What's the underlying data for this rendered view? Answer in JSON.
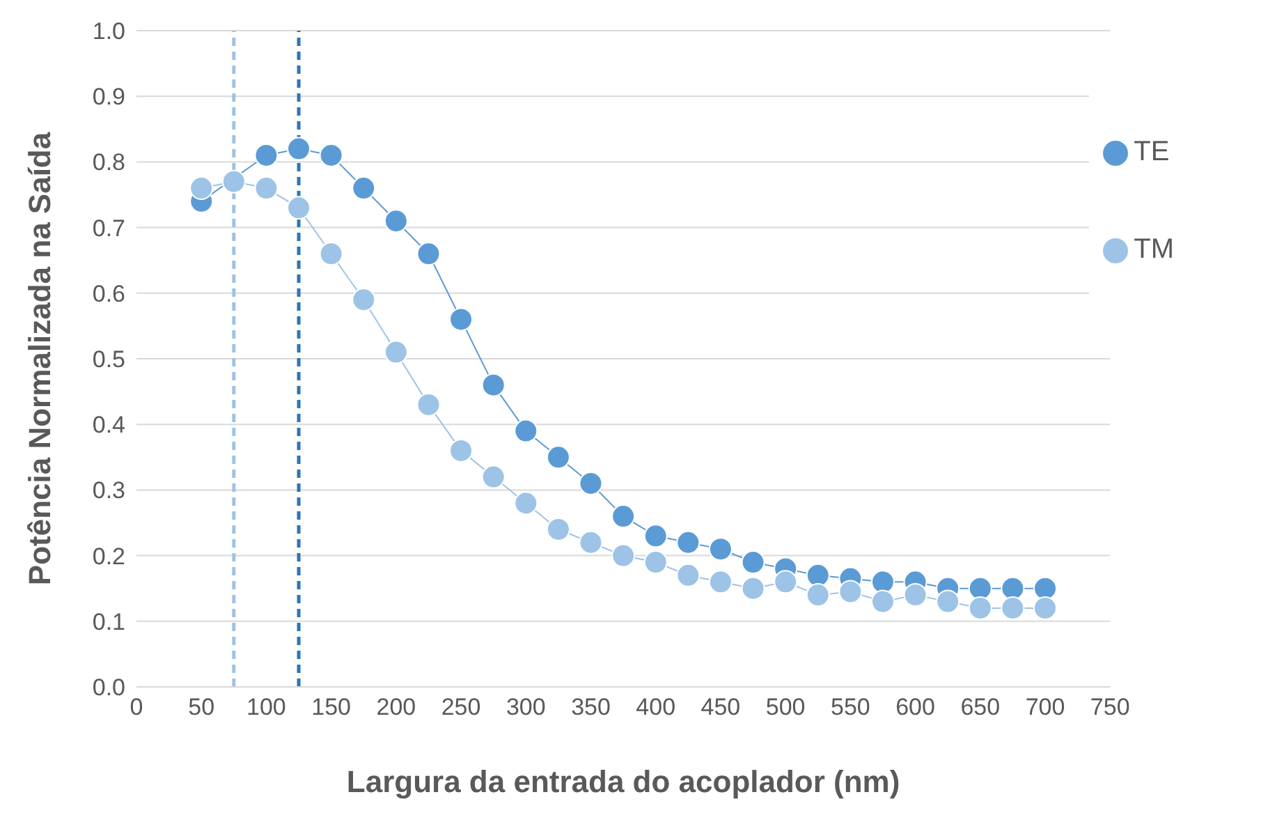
{
  "chart_data": {
    "type": "line",
    "xlabel": "Largura da entrada do  acoplador (nm)",
    "ylabel": "Potência Normalizada na Saída",
    "xlim": [
      0,
      750
    ],
    "xticks": [
      0,
      50,
      100,
      150,
      200,
      250,
      300,
      350,
      400,
      450,
      500,
      550,
      600,
      650,
      700,
      750
    ],
    "ylim": [
      0,
      1
    ],
    "yticks": [
      {
        "value": 0,
        "label": "0.0"
      },
      0.1,
      0.2,
      0.3,
      0.4,
      0.5,
      0.6,
      0.7,
      0.8,
      0.9,
      {
        "value": 1,
        "label": "1.0"
      }
    ],
    "grid": "y",
    "legend": "top right",
    "marker": "circle",
    "line_style": "solid",
    "series": [
      {
        "name": "TE",
        "color": "#5b9bd5",
        "x": [
          50,
          100,
          125,
          150,
          175,
          200,
          225,
          250,
          275,
          300,
          325,
          350,
          375,
          400,
          425,
          450,
          475,
          500,
          525,
          550,
          575,
          600,
          625,
          650,
          675,
          700
        ],
        "values": [
          0.74,
          0.81,
          0.82,
          0.81,
          0.76,
          0.71,
          0.66,
          0.56,
          0.46,
          0.39,
          0.35,
          0.31,
          0.26,
          0.23,
          0.22,
          0.21,
          0.19,
          0.18,
          0.17,
          0.165,
          0.16,
          0.16,
          0.15,
          0.15,
          0.15,
          0.15
        ]
      },
      {
        "name": "TM",
        "color": "#9dc3e6",
        "x": [
          50,
          75,
          100,
          125,
          150,
          175,
          200,
          225,
          250,
          275,
          300,
          325,
          350,
          375,
          400,
          425,
          450,
          475,
          500,
          525,
          550,
          575,
          600,
          625,
          650,
          675,
          700
        ],
        "values": [
          0.76,
          0.77,
          0.76,
          0.73,
          0.66,
          0.59,
          0.51,
          0.43,
          0.36,
          0.32,
          0.28,
          0.24,
          0.22,
          0.2,
          0.19,
          0.17,
          0.16,
          0.15,
          0.16,
          0.14,
          0.145,
          0.13,
          0.14,
          0.13,
          0.12,
          0.12,
          0.12
        ]
      }
    ],
    "ref_lines": [
      {
        "axis": "x",
        "value": 75,
        "color": "#9dc3e6",
        "line_style": "dashed"
      },
      {
        "axis": "x",
        "value": 125,
        "color": "#2e75b6",
        "line_style": "dashed"
      }
    ]
  }
}
